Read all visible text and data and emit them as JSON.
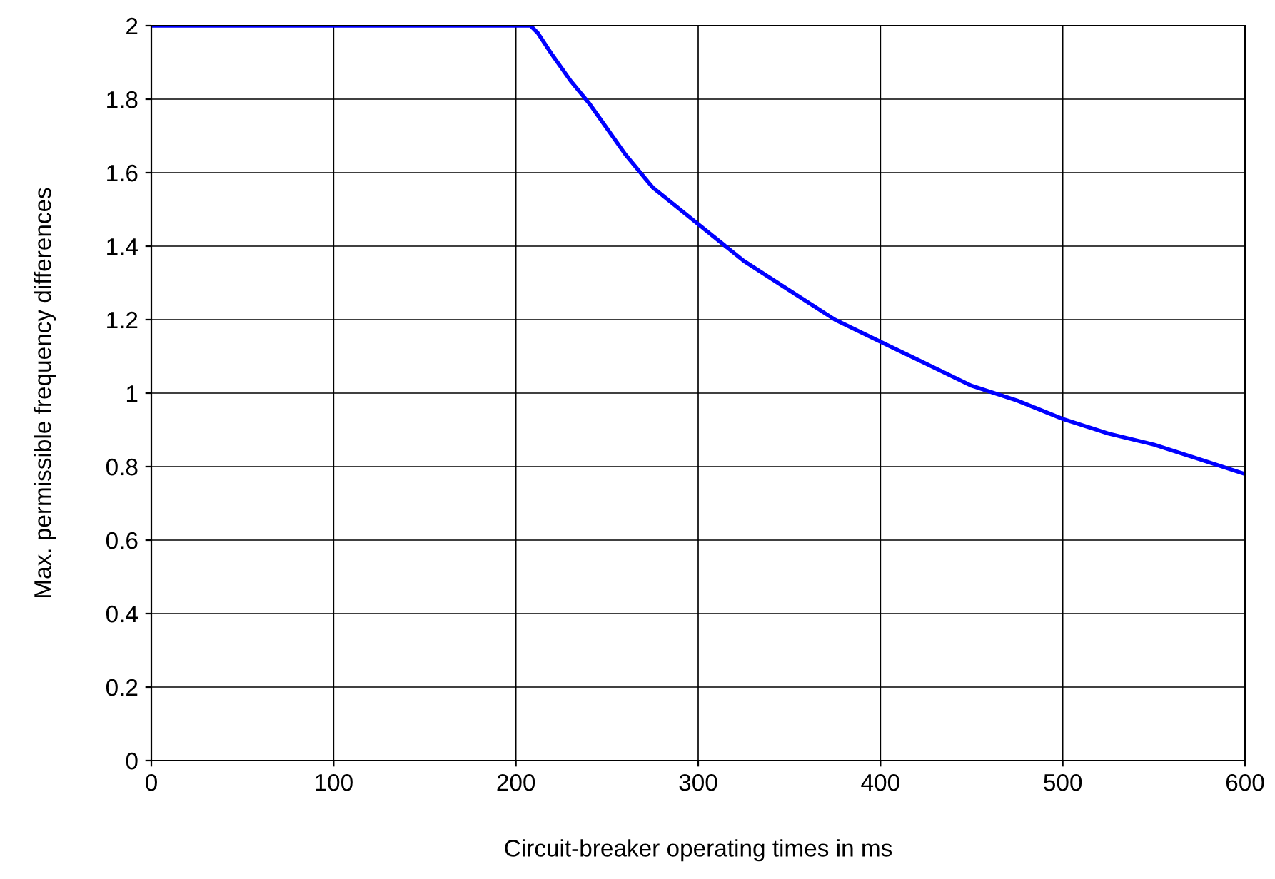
{
  "chart_data": {
    "type": "line",
    "xlabel": "Circuit-breaker operating times in ms",
    "ylabel": "Max. permissible frequency differences",
    "x": [
      0,
      50,
      100,
      150,
      200,
      208,
      212,
      220,
      230,
      240,
      250,
      260,
      275,
      300,
      325,
      350,
      375,
      400,
      425,
      450,
      475,
      500,
      525,
      550,
      575,
      600
    ],
    "series": [
      {
        "color": "#0000ff",
        "values": [
          2,
          2,
          2,
          2,
          2,
          2,
          1.98,
          1.92,
          1.85,
          1.79,
          1.72,
          1.65,
          1.56,
          1.46,
          1.36,
          1.28,
          1.2,
          1.14,
          1.08,
          1.02,
          0.98,
          0.93,
          0.89,
          0.86,
          0.82,
          0.78
        ]
      }
    ],
    "xlim": [
      0,
      600
    ],
    "xticks": [
      0,
      100,
      200,
      300,
      400,
      500,
      600
    ],
    "ylim": [
      0,
      2
    ],
    "yticks": [
      0,
      0.2,
      0.4,
      0.6,
      0.8,
      1,
      1.2,
      1.4,
      1.6,
      1.8,
      2
    ],
    "grid": true,
    "legend": false,
    "marker": "none",
    "line_style": "solid"
  }
}
